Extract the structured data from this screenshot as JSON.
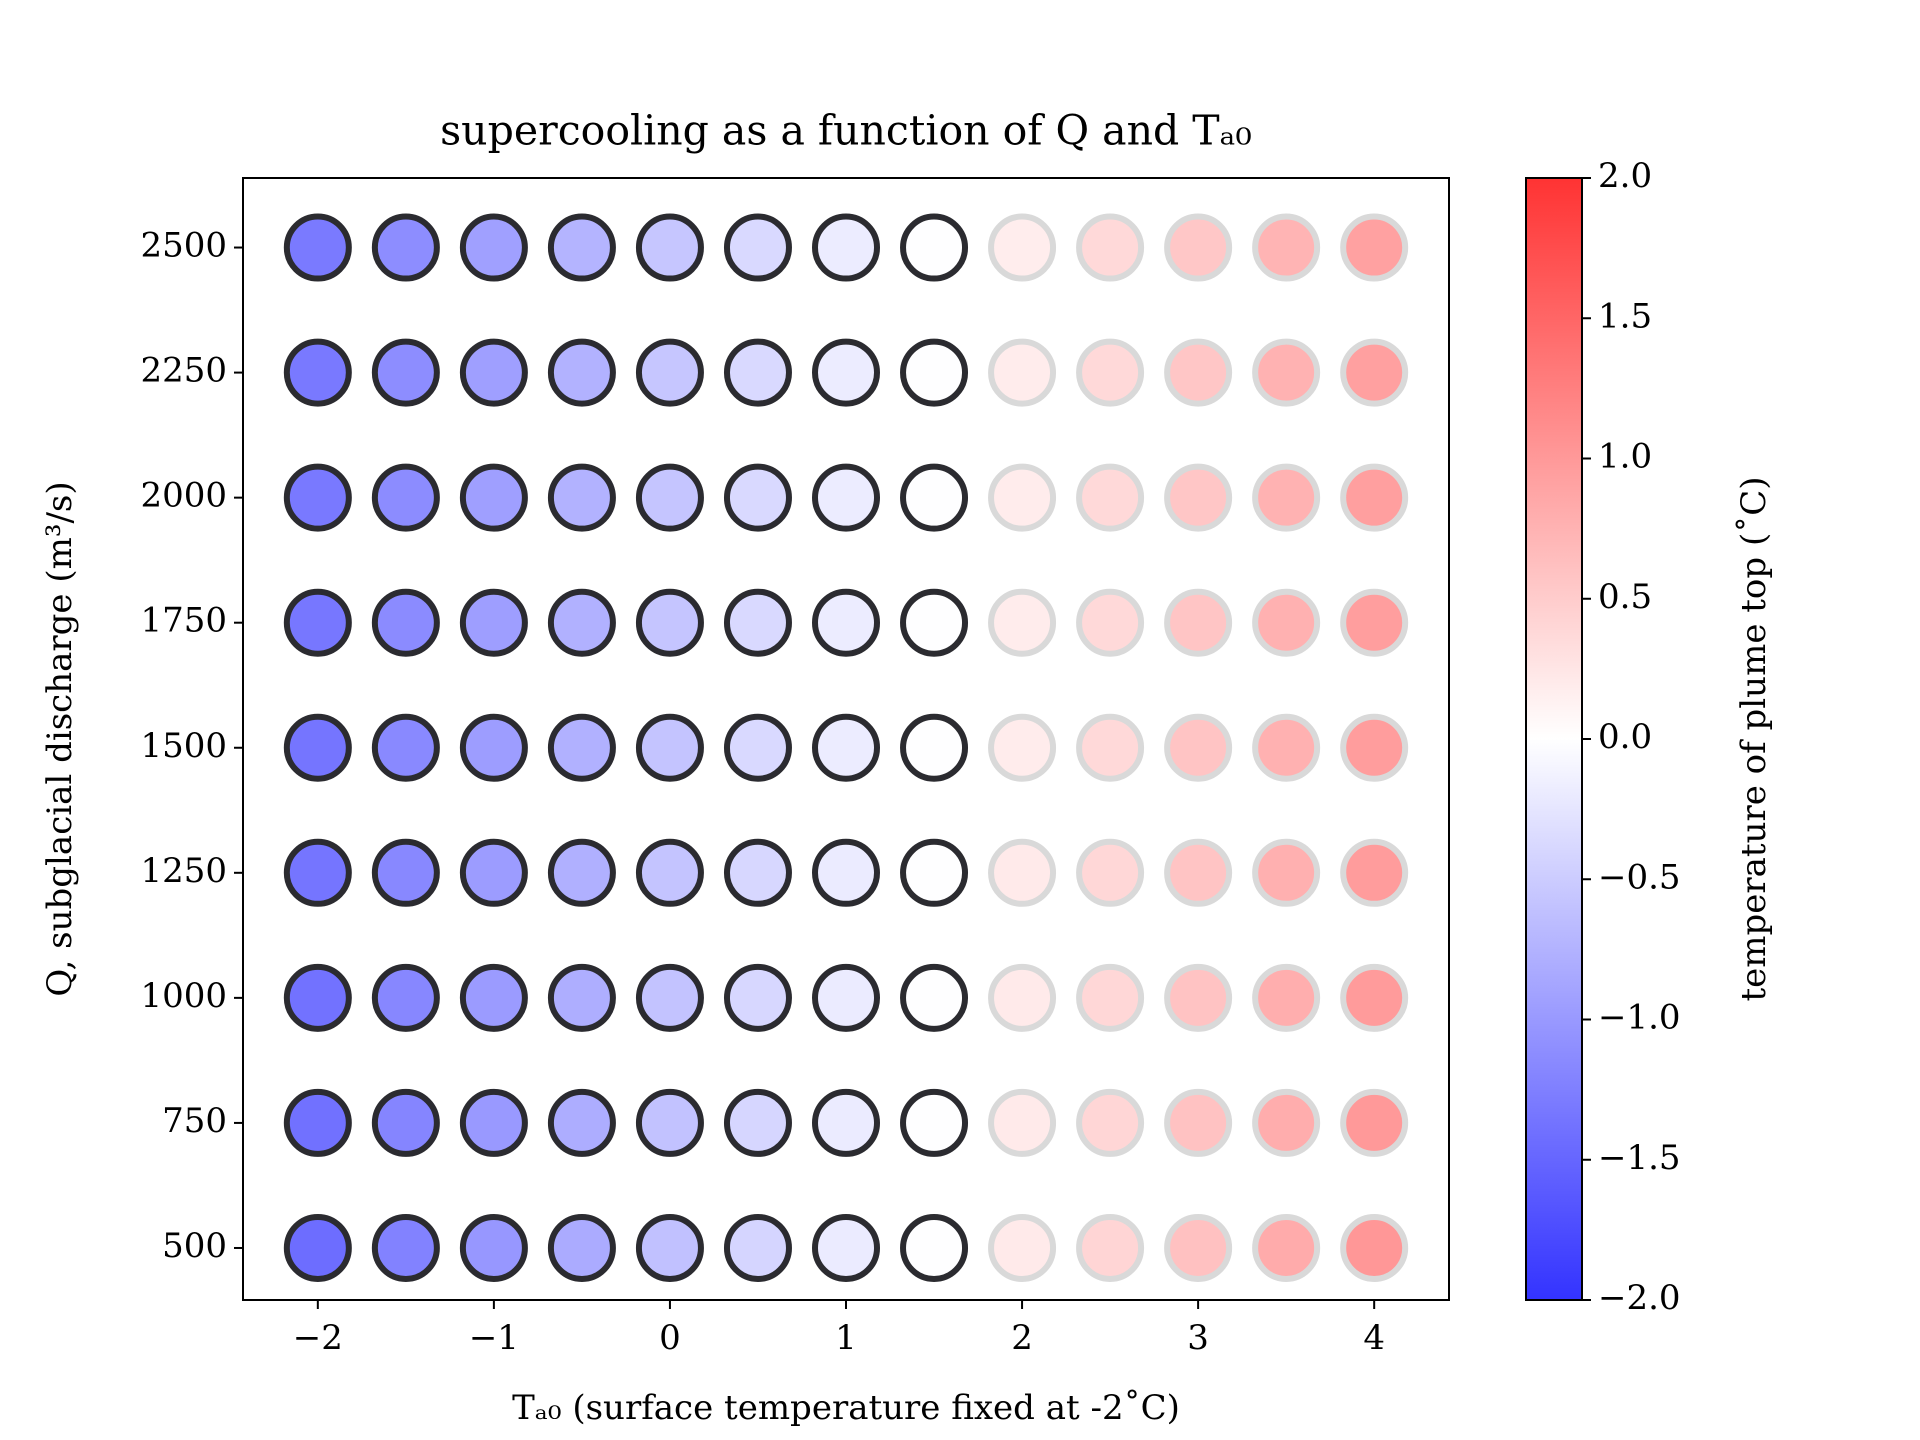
{
  "chart_data": {
    "type": "scatter",
    "title": "supercooling as a function of Q and Tₐ₀",
    "x_label": "Tₐ₀ (surface temperature fixed at -2˚C)",
    "y_label": "Q, subglacial discharge (m³/s)",
    "colorbar_label": "temperature of plume top (˚C)",
    "x": [
      -2,
      -1.5,
      -1,
      -0.5,
      0,
      0.5,
      1,
      1.5,
      2,
      2.5,
      3,
      3.5,
      4
    ],
    "y": [
      2500,
      2250,
      2000,
      1750,
      1500,
      1250,
      1000,
      750,
      500
    ],
    "values": [
      [
        -1.3,
        -1.11,
        -0.93,
        -0.74,
        -0.56,
        -0.37,
        -0.19,
        -0.01,
        0.18,
        0.37,
        0.55,
        0.74,
        0.92
      ],
      [
        -1.31,
        -1.12,
        -0.94,
        -0.75,
        -0.56,
        -0.38,
        -0.19,
        -0.01,
        0.19,
        0.37,
        0.56,
        0.75,
        0.93
      ],
      [
        -1.32,
        -1.13,
        -0.94,
        -0.75,
        -0.57,
        -0.38,
        -0.19,
        -0.01,
        0.19,
        0.38,
        0.56,
        0.75,
        0.94
      ],
      [
        -1.33,
        -1.14,
        -0.95,
        -0.76,
        -0.57,
        -0.38,
        -0.19,
        -0.01,
        0.19,
        0.38,
        0.57,
        0.76,
        0.95
      ],
      [
        -1.35,
        -1.15,
        -0.96,
        -0.77,
        -0.58,
        -0.38,
        -0.19,
        -0.01,
        0.19,
        0.38,
        0.58,
        0.77,
        0.96
      ],
      [
        -1.36,
        -1.17,
        -0.97,
        -0.78,
        -0.58,
        -0.39,
        -0.2,
        -0.01,
        0.2,
        0.39,
        0.58,
        0.78,
        0.97
      ],
      [
        -1.38,
        -1.18,
        -0.98,
        -0.79,
        -0.59,
        -0.39,
        -0.2,
        -0.01,
        0.2,
        0.39,
        0.59,
        0.79,
        0.98
      ],
      [
        -1.4,
        -1.2,
        -1.0,
        -0.8,
        -0.6,
        -0.4,
        -0.2,
        -0.01,
        0.2,
        0.4,
        0.6,
        0.8,
        1.0
      ],
      [
        -1.43,
        -1.22,
        -1.02,
        -0.82,
        -0.61,
        -0.41,
        -0.2,
        -0.01,
        0.2,
        0.41,
        0.61,
        0.82,
        1.02
      ]
    ],
    "cmap": "bwr",
    "alpha": 0.8,
    "clim": [
      -2,
      2
    ],
    "cticks": [
      {
        "value": -2,
        "label": "−2.0"
      },
      {
        "value": -1.5,
        "label": "−1.5"
      },
      {
        "value": -1,
        "label": "−1.0"
      },
      {
        "value": -0.5,
        "label": "−0.5"
      },
      {
        "value": 0,
        "label": "0.0"
      },
      {
        "value": 0.5,
        "label": "0.5"
      },
      {
        "value": 1,
        "label": "1.0"
      },
      {
        "value": 1.5,
        "label": "1.5"
      },
      {
        "value": 2,
        "label": "2.0"
      }
    ],
    "edgecolor_negative": "#2b2b30",
    "edgecolor_positive": "#d9d9d9",
    "xlim": [
      -2.425,
      4.425
    ],
    "ylim": [
      396,
      2639
    ],
    "xticks": [
      {
        "value": -2,
        "label": "−2"
      },
      {
        "value": -1,
        "label": "−1"
      },
      0,
      1,
      2,
      3,
      4
    ],
    "yticks": [
      500,
      750,
      1000,
      1250,
      1500,
      1750,
      2000,
      2250,
      2500
    ]
  }
}
